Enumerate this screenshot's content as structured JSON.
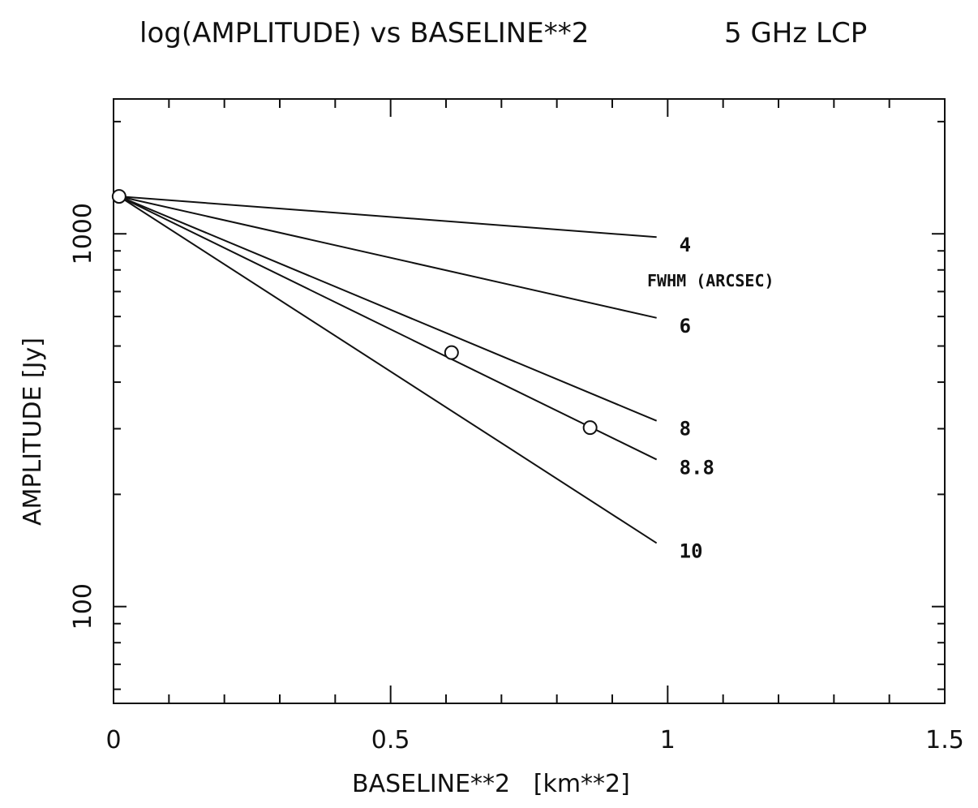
{
  "chart_data": {
    "type": "line",
    "title": "log(AMPLITUDE) vs BASELINE**2",
    "subtitle": "5 GHz LCP",
    "xlabel": "BASELINE**2   [km**2]",
    "ylabel": "AMPLITUDE [Jy]",
    "xlim": [
      0,
      1.5
    ],
    "ylim": [
      55,
      2300
    ],
    "y_scale": "log",
    "x_ticks": [
      {
        "value": 0,
        "label": "0"
      },
      {
        "value": 0.5,
        "label": "0.5"
      },
      {
        "value": 1,
        "label": "1"
      },
      {
        "value": 1.5,
        "label": "1.5"
      }
    ],
    "y_ticks": [
      {
        "value": 100,
        "label": "100"
      },
      {
        "value": 1000,
        "label": "1000"
      }
    ],
    "legend_title": "FWHM (ARCSEC)",
    "series": [
      {
        "name": "4",
        "x": [
          0.01,
          0.98
        ],
        "y": [
          1260,
          980
        ]
      },
      {
        "name": "6",
        "x": [
          0.01,
          0.98
        ],
        "y": [
          1260,
          595
        ]
      },
      {
        "name": "8",
        "x": [
          0.01,
          0.98
        ],
        "y": [
          1260,
          315
        ]
      },
      {
        "name": "8.8",
        "x": [
          0.01,
          0.98
        ],
        "y": [
          1260,
          248
        ]
      },
      {
        "name": "10",
        "x": [
          0.01,
          0.98
        ],
        "y": [
          1260,
          148
        ]
      }
    ],
    "points": [
      {
        "x": 0.01,
        "y": 1260
      },
      {
        "x": 0.61,
        "y": 480
      },
      {
        "x": 0.86,
        "y": 302
      }
    ],
    "grid": false
  }
}
